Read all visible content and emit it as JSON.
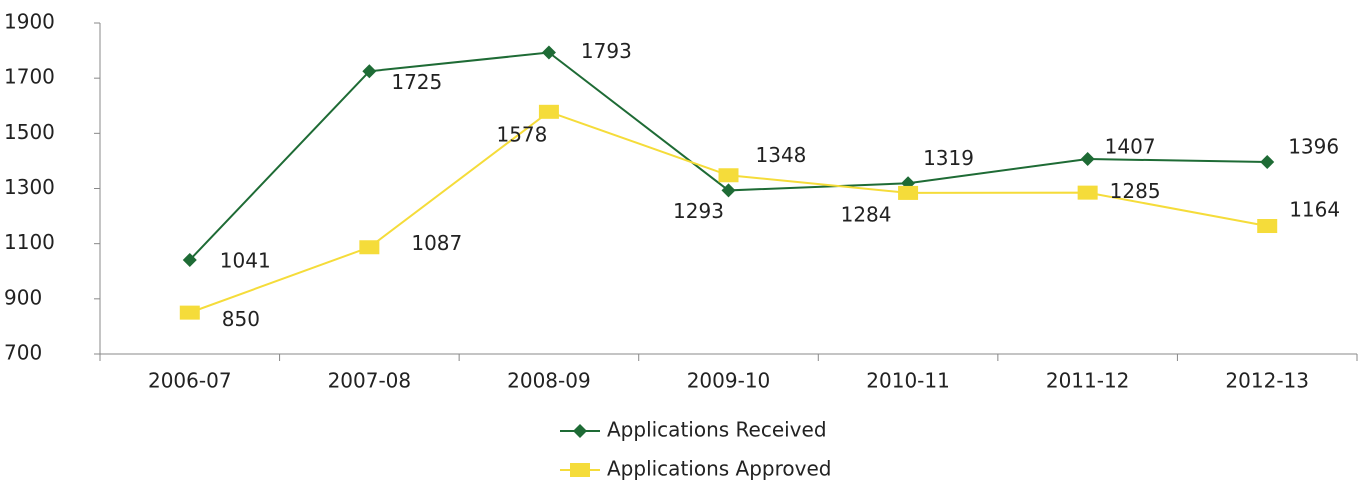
{
  "chart_data": {
    "type": "line",
    "categories": [
      "2006-07",
      "2007-08",
      "2008-09",
      "2009-10",
      "2010-11",
      "2011-12",
      "2012-13"
    ],
    "series": [
      {
        "name": "Applications Received",
        "color": "#1e6b35",
        "marker": "diamond",
        "values": [
          1041,
          1725,
          1793,
          1293,
          1319,
          1407,
          1396
        ]
      },
      {
        "name": "Applications Approved",
        "color": "#f5dc3a",
        "marker": "square",
        "values": [
          850,
          1087,
          1578,
          1348,
          1284,
          1285,
          1164
        ]
      }
    ],
    "ylim": [
      700,
      1900
    ],
    "yticks": [
      700,
      900,
      1100,
      1300,
      1500,
      1700,
      1900
    ],
    "grid": false,
    "legend": "bottom"
  }
}
